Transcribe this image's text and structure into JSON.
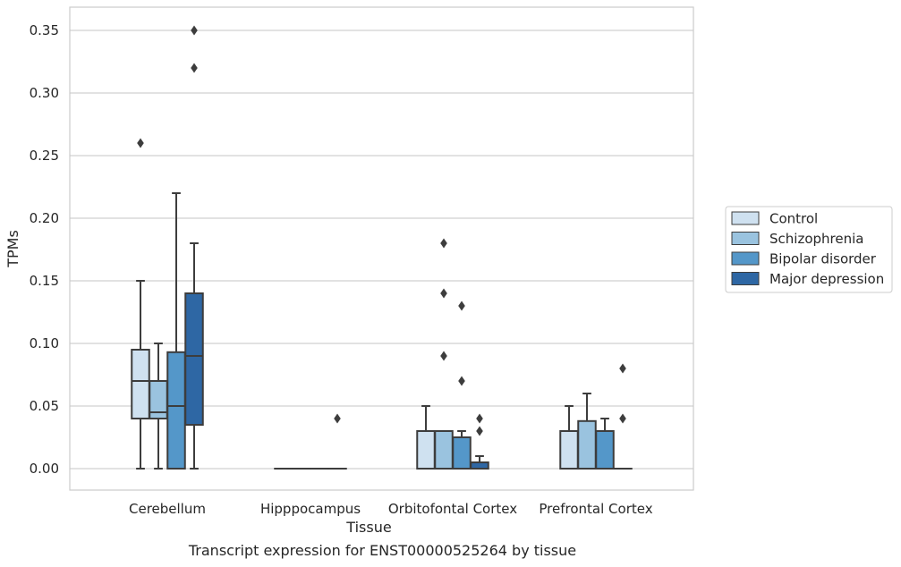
{
  "caption": "Transcript expression for ENST00000525264 by tissue",
  "chart_data": {
    "type": "box",
    "xlabel": "Tissue",
    "ylabel": "TPMs",
    "ylim": [
      -0.017,
      0.367
    ],
    "yticks": [
      0.0,
      0.05,
      0.1,
      0.15,
      0.2,
      0.25,
      0.3,
      0.35
    ],
    "ytick_labels": [
      "0.00",
      "0.05",
      "0.10",
      "0.15",
      "0.20",
      "0.25",
      "0.30",
      "0.35"
    ],
    "grid": true,
    "legend_position": "right",
    "categories": [
      "Cerebellum",
      "Hipppocampus",
      "Orbitofontal Cortex",
      "Prefrontal Cortex"
    ],
    "series": [
      {
        "name": "Control",
        "color": "#cfe1f0",
        "boxes": [
          {
            "whislo": 0.0,
            "q1": 0.04,
            "med": 0.07,
            "q3": 0.095,
            "whishi": 0.15,
            "fliers": [
              0.26
            ]
          },
          {
            "whislo": 0.0,
            "q1": 0.0,
            "med": 0.0,
            "q3": 0.0,
            "whishi": 0.0,
            "fliers": []
          },
          {
            "whislo": 0.0,
            "q1": 0.0,
            "med": 0.0,
            "q3": 0.03,
            "whishi": 0.05,
            "fliers": []
          },
          {
            "whislo": 0.0,
            "q1": 0.0,
            "med": 0.0,
            "q3": 0.03,
            "whishi": 0.05,
            "fliers": []
          }
        ]
      },
      {
        "name": "Schizophrenia",
        "color": "#9ac3df",
        "boxes": [
          {
            "whislo": 0.0,
            "q1": 0.04,
            "med": 0.045,
            "q3": 0.07,
            "whishi": 0.1,
            "fliers": []
          },
          {
            "whislo": 0.0,
            "q1": 0.0,
            "med": 0.0,
            "q3": 0.0,
            "whishi": 0.0,
            "fliers": []
          },
          {
            "whislo": 0.0,
            "q1": 0.0,
            "med": 0.0,
            "q3": 0.03,
            "whishi": 0.03,
            "fliers": [
              0.09,
              0.14,
              0.18
            ]
          },
          {
            "whislo": 0.0,
            "q1": 0.0,
            "med": 0.0,
            "q3": 0.038,
            "whishi": 0.06,
            "fliers": []
          }
        ]
      },
      {
        "name": "Bipolar disorder",
        "color": "#5497c9",
        "boxes": [
          {
            "whislo": 0.0,
            "q1": 0.0,
            "med": 0.05,
            "q3": 0.093,
            "whishi": 0.22,
            "fliers": []
          },
          {
            "whislo": 0.0,
            "q1": 0.0,
            "med": 0.0,
            "q3": 0.0,
            "whishi": 0.0,
            "fliers": []
          },
          {
            "whislo": 0.0,
            "q1": 0.0,
            "med": 0.0,
            "q3": 0.025,
            "whishi": 0.03,
            "fliers": [
              0.07,
              0.13
            ]
          },
          {
            "whislo": 0.0,
            "q1": 0.0,
            "med": 0.0,
            "q3": 0.03,
            "whishi": 0.04,
            "fliers": []
          }
        ]
      },
      {
        "name": "Major depression",
        "color": "#2e67a4",
        "boxes": [
          {
            "whislo": 0.0,
            "q1": 0.035,
            "med": 0.09,
            "q3": 0.14,
            "whishi": 0.18,
            "fliers": [
              0.32,
              0.35
            ]
          },
          {
            "whislo": 0.0,
            "q1": 0.0,
            "med": 0.0,
            "q3": 0.0,
            "whishi": 0.0,
            "fliers": [
              0.04
            ]
          },
          {
            "whislo": 0.0,
            "q1": 0.0,
            "med": 0.0,
            "q3": 0.005,
            "whishi": 0.01,
            "fliers": [
              0.03,
              0.04
            ]
          },
          {
            "whislo": 0.0,
            "q1": 0.0,
            "med": 0.0,
            "q3": 0.0,
            "whishi": 0.0,
            "fliers": [
              0.04,
              0.08
            ]
          }
        ]
      }
    ]
  }
}
